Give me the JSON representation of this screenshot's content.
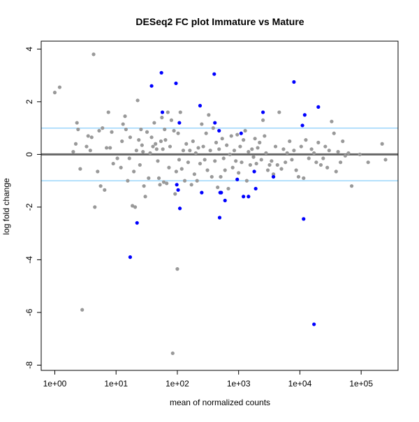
{
  "chart_data": {
    "type": "scatter",
    "title": "DESeq2 FC plot Immature vs Mature",
    "xlabel": "mean of normalized counts",
    "ylabel": "log fold change",
    "x_scale": "log10",
    "xlim": [
      0.6,
      400000
    ],
    "ylim": [
      -8.2,
      4.3
    ],
    "x_ticks": [
      1,
      10,
      100,
      1000,
      10000,
      100000
    ],
    "x_tick_labels": [
      "1e+00",
      "1e+01",
      "1e+02",
      "1e+03",
      "1e+04",
      "1e+05"
    ],
    "y_ticks": [
      -8,
      -6,
      -4,
      -2,
      0,
      2,
      4
    ],
    "y_tick_labels": [
      "-8",
      "-6",
      "-4",
      "-2",
      "0",
      "2",
      "4"
    ],
    "grid": false,
    "colors": {
      "not_significant": "#999999",
      "significant": "#0000ff",
      "zero_line": "#666666",
      "threshold_lines": "#87cefa",
      "frame": "#000000"
    },
    "reference_lines": [
      {
        "y": 0,
        "color": "#666666"
      },
      {
        "y": 1,
        "color": "#87cefa"
      },
      {
        "y": -1,
        "color": "#87cefa"
      }
    ],
    "series": [
      {
        "color": "#999999",
        "points": [
          [
            1.0,
            2.35
          ],
          [
            1.2,
            2.55
          ],
          [
            2.0,
            0.1
          ],
          [
            2.2,
            0.4
          ],
          [
            2.3,
            1.2
          ],
          [
            2.4,
            0.95
          ],
          [
            2.6,
            -0.55
          ],
          [
            2.8,
            -5.9
          ],
          [
            3.3,
            0.3
          ],
          [
            3.5,
            0.7
          ],
          [
            3.8,
            0.15
          ],
          [
            4.0,
            0.65
          ],
          [
            4.3,
            3.8
          ],
          [
            4.5,
            -2.0
          ],
          [
            5.0,
            -0.65
          ],
          [
            5.3,
            0.9
          ],
          [
            5.6,
            -1.2
          ],
          [
            6.0,
            1.0
          ],
          [
            6.5,
            -1.35
          ],
          [
            7.0,
            0.25
          ],
          [
            7.5,
            1.6
          ],
          [
            8.0,
            0.25
          ],
          [
            8.5,
            0.85
          ],
          [
            9.0,
            -0.35
          ],
          [
            10.5,
            -0.15
          ],
          [
            12.0,
            -0.5
          ],
          [
            12.5,
            0.5
          ],
          [
            13.0,
            1.15
          ],
          [
            14.0,
            1.45
          ],
          [
            14.5,
            0.95
          ],
          [
            15.5,
            -1.0
          ],
          [
            16.5,
            -0.15
          ],
          [
            17.0,
            0.65
          ],
          [
            18.5,
            -1.95
          ],
          [
            19.5,
            -0.65
          ],
          [
            20.5,
            -2.0
          ],
          [
            21.5,
            0.15
          ],
          [
            22.5,
            2.05
          ],
          [
            23.5,
            0.55
          ],
          [
            24.5,
            -0.4
          ],
          [
            25.5,
            0.95
          ],
          [
            26.5,
            0.35
          ],
          [
            27.5,
            0.1
          ],
          [
            28.5,
            -1.2
          ],
          [
            30.0,
            -1.6
          ],
          [
            32.0,
            0.85
          ],
          [
            34.0,
            -0.9
          ],
          [
            36.0,
            0.05
          ],
          [
            38.0,
            0.65
          ],
          [
            40.0,
            0.3
          ],
          [
            42.0,
            1.2
          ],
          [
            44.0,
            0.4
          ],
          [
            46.0,
            0.2
          ],
          [
            48.0,
            -0.25
          ],
          [
            50.0,
            -0.9
          ],
          [
            52.0,
            -1.15
          ],
          [
            54.0,
            0.5
          ],
          [
            56.0,
            1.4
          ],
          [
            58.0,
            0.2
          ],
          [
            60.0,
            -1.05
          ],
          [
            62.0,
            0.95
          ],
          [
            64.0,
            0.55
          ],
          [
            67.0,
            -1.1
          ],
          [
            70.0,
            1.6
          ],
          [
            73.0,
            -0.5
          ],
          [
            76.0,
            0.3
          ],
          [
            80.0,
            1.3
          ],
          [
            84.0,
            -7.55
          ],
          [
            88.0,
            0.9
          ],
          [
            92.0,
            -1.5
          ],
          [
            96.0,
            -0.65
          ],
          [
            100.0,
            -4.35
          ],
          [
            103.0,
            0.8
          ],
          [
            107.0,
            -0.2
          ],
          [
            112.0,
            1.6
          ],
          [
            118.0,
            -0.55
          ],
          [
            125.0,
            0.15
          ],
          [
            132.0,
            -1.0
          ],
          [
            140.0,
            0.4
          ],
          [
            150.0,
            -0.3
          ],
          [
            160.0,
            0.15
          ],
          [
            170.0,
            -1.15
          ],
          [
            180.0,
            0.5
          ],
          [
            190.0,
            -0.75
          ],
          [
            200.0,
            0.05
          ],
          [
            210.0,
            -1.0
          ],
          [
            220.0,
            0.25
          ],
          [
            235.0,
            -0.35
          ],
          [
            250.0,
            1.15
          ],
          [
            265.0,
            0.3
          ],
          [
            280.0,
            -0.2
          ],
          [
            295.0,
            0.8
          ],
          [
            310.0,
            -0.6
          ],
          [
            325.0,
            1.5
          ],
          [
            345.0,
            0.15
          ],
          [
            365.0,
            -0.85
          ],
          [
            385.0,
            1.0
          ],
          [
            410.0,
            -0.25
          ],
          [
            430.0,
            0.45
          ],
          [
            455.0,
            -1.25
          ],
          [
            480.0,
            0.2
          ],
          [
            510.0,
            -0.85
          ],
          [
            540.0,
            0.6
          ],
          [
            570.0,
            -0.15
          ],
          [
            600.0,
            -0.6
          ],
          [
            640.0,
            0.35
          ],
          [
            680.0,
            -1.3
          ],
          [
            720.0,
            0.0
          ],
          [
            760.0,
            0.7
          ],
          [
            800.0,
            -0.5
          ],
          [
            850.0,
            0.15
          ],
          [
            900.0,
            -0.25
          ],
          [
            950.0,
            0.75
          ],
          [
            1000.0,
            -0.7
          ],
          [
            1060.0,
            0.3
          ],
          [
            1120.0,
            -0.3
          ],
          [
            1200.0,
            0.55
          ],
          [
            1280.0,
            0.9
          ],
          [
            1360.0,
            -1.0
          ],
          [
            1450.0,
            0.1
          ],
          [
            1550.0,
            -0.4
          ],
          [
            1650.0,
            0.2
          ],
          [
            1750.0,
            -0.1
          ],
          [
            1850.0,
            0.6
          ],
          [
            1950.0,
            -0.35
          ],
          [
            2050.0,
            0.25
          ],
          [
            2200.0,
            0.45
          ],
          [
            2350.0,
            -0.2
          ],
          [
            2500.0,
            1.3
          ],
          [
            2650.0,
            0.7
          ],
          [
            2800.0,
            0.05
          ],
          [
            3000.0,
            -0.6
          ],
          [
            3200.0,
            -0.4
          ],
          [
            3450.0,
            -0.25
          ],
          [
            3700.0,
            -0.75
          ],
          [
            4000.0,
            0.3
          ],
          [
            4300.0,
            -0.4
          ],
          [
            4600.0,
            1.6
          ],
          [
            5000.0,
            -0.55
          ],
          [
            5400.0,
            0.2
          ],
          [
            5800.0,
            -0.3
          ],
          [
            6200.0,
            0.05
          ],
          [
            6800.0,
            0.5
          ],
          [
            7400.0,
            -0.2
          ],
          [
            8000.0,
            0.15
          ],
          [
            8700.0,
            -0.6
          ],
          [
            9500.0,
            -0.85
          ],
          [
            10500.0,
            0.3
          ],
          [
            11500.0,
            -0.9
          ],
          [
            12500.0,
            0.55
          ],
          [
            14000.0,
            -0.15
          ],
          [
            15500.0,
            0.2
          ],
          [
            17000.0,
            0.05
          ],
          [
            18500.0,
            -0.3
          ],
          [
            20000.0,
            0.45
          ],
          [
            22000.0,
            -0.4
          ],
          [
            24000.0,
            -0.15
          ],
          [
            26000.0,
            0.3
          ],
          [
            28000.0,
            -0.5
          ],
          [
            30000.0,
            0.15
          ],
          [
            33000.0,
            1.25
          ],
          [
            36000.0,
            0.8
          ],
          [
            39000.0,
            -0.65
          ],
          [
            42000.0,
            0.1
          ],
          [
            46000.0,
            -0.3
          ],
          [
            50000.0,
            0.5
          ],
          [
            55000.0,
            -0.05
          ],
          [
            62000.0,
            0.05
          ],
          [
            70000.0,
            -1.2
          ],
          [
            95000.0,
            0.0
          ],
          [
            130000.0,
            -0.3
          ],
          [
            220000.0,
            0.4
          ],
          [
            250000.0,
            -0.2
          ]
        ]
      },
      {
        "color": "#0000ff",
        "points": [
          [
            17.0,
            -3.9
          ],
          [
            22.0,
            -2.6
          ],
          [
            38.0,
            2.6
          ],
          [
            55.0,
            3.1
          ],
          [
            57.0,
            1.6
          ],
          [
            95.0,
            2.7
          ],
          [
            98.0,
            -1.15
          ],
          [
            103.0,
            -1.35
          ],
          [
            108.0,
            1.2
          ],
          [
            110.0,
            -2.05
          ],
          [
            235.0,
            1.85
          ],
          [
            250.0,
            -1.45
          ],
          [
            400.0,
            3.05
          ],
          [
            410.0,
            1.2
          ],
          [
            480.0,
            0.9
          ],
          [
            490.0,
            -2.4
          ],
          [
            500.0,
            -1.45
          ],
          [
            520.0,
            -1.45
          ],
          [
            600.0,
            -1.75
          ],
          [
            950.0,
            -0.95
          ],
          [
            1100.0,
            0.8
          ],
          [
            1200.0,
            -1.6
          ],
          [
            1450.0,
            -1.6
          ],
          [
            1800.0,
            -0.65
          ],
          [
            1900.0,
            -1.3
          ],
          [
            2500.0,
            1.6
          ],
          [
            3700.0,
            -0.85
          ],
          [
            8000.0,
            2.75
          ],
          [
            11000.0,
            1.1
          ],
          [
            11500.0,
            -2.45
          ],
          [
            12000.0,
            1.5
          ],
          [
            17000.0,
            -6.45
          ],
          [
            20000.0,
            1.8
          ]
        ]
      }
    ]
  }
}
